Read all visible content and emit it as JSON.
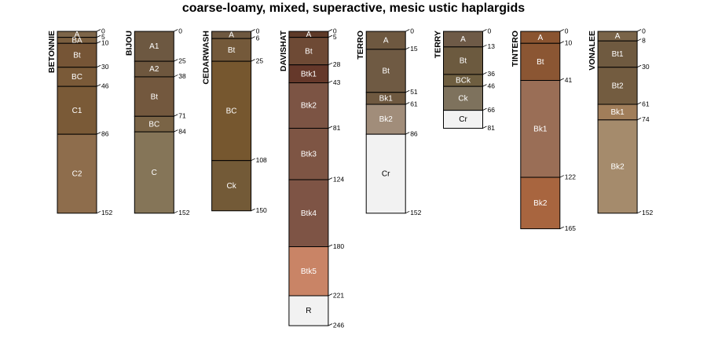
{
  "chart_data": {
    "type": "soil-profile-sketch",
    "title": "coarse-loamy, mixed, superactive, mesic ustic haplargids",
    "depth_units": "cm",
    "profiles": [
      {
        "name": "BETONNIE",
        "max_depth": 152,
        "horizons": [
          {
            "name": "A",
            "top": 0,
            "bottom": 5,
            "color": "#7D6549"
          },
          {
            "name": "BA",
            "top": 5,
            "bottom": 10,
            "color": "#7A5E3F"
          },
          {
            "name": "Bt",
            "top": 10,
            "bottom": 30,
            "color": "#765536"
          },
          {
            "name": "BC",
            "top": 30,
            "bottom": 46,
            "color": "#7A5A38"
          },
          {
            "name": "C1",
            "top": 46,
            "bottom": 86,
            "color": "#7A5A37"
          },
          {
            "name": "C2",
            "top": 86,
            "bottom": 152,
            "color": "#8E6D4C"
          }
        ],
        "depth_labels": [
          0,
          5,
          10,
          30,
          46,
          86,
          152
        ]
      },
      {
        "name": "BIJOU",
        "max_depth": 152,
        "horizons": [
          {
            "name": "A1",
            "top": 0,
            "bottom": 25,
            "color": "#6D5841"
          },
          {
            "name": "A2",
            "top": 25,
            "bottom": 38,
            "color": "#6E573E"
          },
          {
            "name": "Bt",
            "top": 38,
            "bottom": 71,
            "color": "#73583E"
          },
          {
            "name": "BC",
            "top": 71,
            "bottom": 84,
            "color": "#7A6446"
          },
          {
            "name": "C",
            "top": 84,
            "bottom": 152,
            "color": "#857558"
          }
        ],
        "depth_labels": [
          0,
          25,
          38,
          71,
          84,
          152
        ]
      },
      {
        "name": "CEDARWASH",
        "max_depth": 150,
        "horizons": [
          {
            "name": "A",
            "top": 0,
            "bottom": 6,
            "color": "#6E5840"
          },
          {
            "name": "Bt",
            "top": 6,
            "bottom": 25,
            "color": "#74593A"
          },
          {
            "name": "BC",
            "top": 25,
            "bottom": 108,
            "color": "#76572F"
          },
          {
            "name": "Ck",
            "top": 108,
            "bottom": 150,
            "color": "#735A37"
          }
        ],
        "depth_labels": [
          0,
          6,
          25,
          108,
          150
        ]
      },
      {
        "name": "DAVISHAT",
        "max_depth": 246,
        "horizons": [
          {
            "name": "A",
            "top": 0,
            "bottom": 5,
            "color": "#5E3A28"
          },
          {
            "name": "Bt",
            "top": 5,
            "bottom": 28,
            "color": "#6E4A35"
          },
          {
            "name": "Btk1",
            "top": 28,
            "bottom": 43,
            "color": "#65382A"
          },
          {
            "name": "Btk2",
            "top": 43,
            "bottom": 81,
            "color": "#7C5444"
          },
          {
            "name": "Btk3",
            "top": 81,
            "bottom": 124,
            "color": "#7E5544"
          },
          {
            "name": "Btk4",
            "top": 124,
            "bottom": 180,
            "color": "#7E5445"
          },
          {
            "name": "Btk5",
            "top": 180,
            "bottom": 221,
            "color": "#C98466"
          },
          {
            "name": "R",
            "top": 221,
            "bottom": 246,
            "color": "#F2F2F2"
          }
        ],
        "depth_labels": [
          0,
          5,
          28,
          43,
          81,
          124,
          180,
          221,
          246
        ]
      },
      {
        "name": "TERRO",
        "max_depth": 152,
        "horizons": [
          {
            "name": "A",
            "top": 0,
            "bottom": 15,
            "color": "#6E5840"
          },
          {
            "name": "Bt",
            "top": 15,
            "bottom": 51,
            "color": "#6F5A43"
          },
          {
            "name": "Bk1",
            "top": 51,
            "bottom": 61,
            "color": "#6F5940"
          },
          {
            "name": "Bk2",
            "top": 61,
            "bottom": 86,
            "color": "#A18D7A"
          },
          {
            "name": "Cr",
            "top": 86,
            "bottom": 152,
            "color": "#F2F2F2"
          }
        ],
        "depth_labels": [
          0,
          15,
          51,
          61,
          86,
          152
        ]
      },
      {
        "name": "TERRY",
        "max_depth": 81,
        "horizons": [
          {
            "name": "A",
            "top": 0,
            "bottom": 13,
            "color": "#6E5A47"
          },
          {
            "name": "Bt",
            "top": 13,
            "bottom": 36,
            "color": "#6C5A3F"
          },
          {
            "name": "BCk",
            "top": 36,
            "bottom": 46,
            "color": "#6E5E40"
          },
          {
            "name": "Ck",
            "top": 46,
            "bottom": 66,
            "color": "#7E725D"
          },
          {
            "name": "Cr",
            "top": 66,
            "bottom": 81,
            "color": "#F2F2F2"
          }
        ],
        "depth_labels": [
          0,
          13,
          36,
          46,
          66,
          81
        ]
      },
      {
        "name": "TINTERO",
        "max_depth": 165,
        "horizons": [
          {
            "name": "A",
            "top": 0,
            "bottom": 10,
            "color": "#8A5430"
          },
          {
            "name": "Bt",
            "top": 10,
            "bottom": 41,
            "color": "#8B5633"
          },
          {
            "name": "Bk1",
            "top": 41,
            "bottom": 122,
            "color": "#9A6E56"
          },
          {
            "name": "Bk2",
            "top": 122,
            "bottom": 165,
            "color": "#A8653F"
          }
        ],
        "depth_labels": [
          0,
          10,
          41,
          122,
          165
        ]
      },
      {
        "name": "VONALEE",
        "max_depth": 152,
        "horizons": [
          {
            "name": "A",
            "top": 0,
            "bottom": 8,
            "color": "#7A6449"
          },
          {
            "name": "Bt1",
            "top": 8,
            "bottom": 30,
            "color": "#6F5A40"
          },
          {
            "name": "Bt2",
            "top": 30,
            "bottom": 61,
            "color": "#735C40"
          },
          {
            "name": "Bk1",
            "top": 61,
            "bottom": 74,
            "color": "#A17E5A"
          },
          {
            "name": "Bk2",
            "top": 74,
            "bottom": 152,
            "color": "#A58B6C"
          }
        ],
        "depth_labels": [
          0,
          8,
          30,
          61,
          74,
          152
        ]
      }
    ]
  }
}
